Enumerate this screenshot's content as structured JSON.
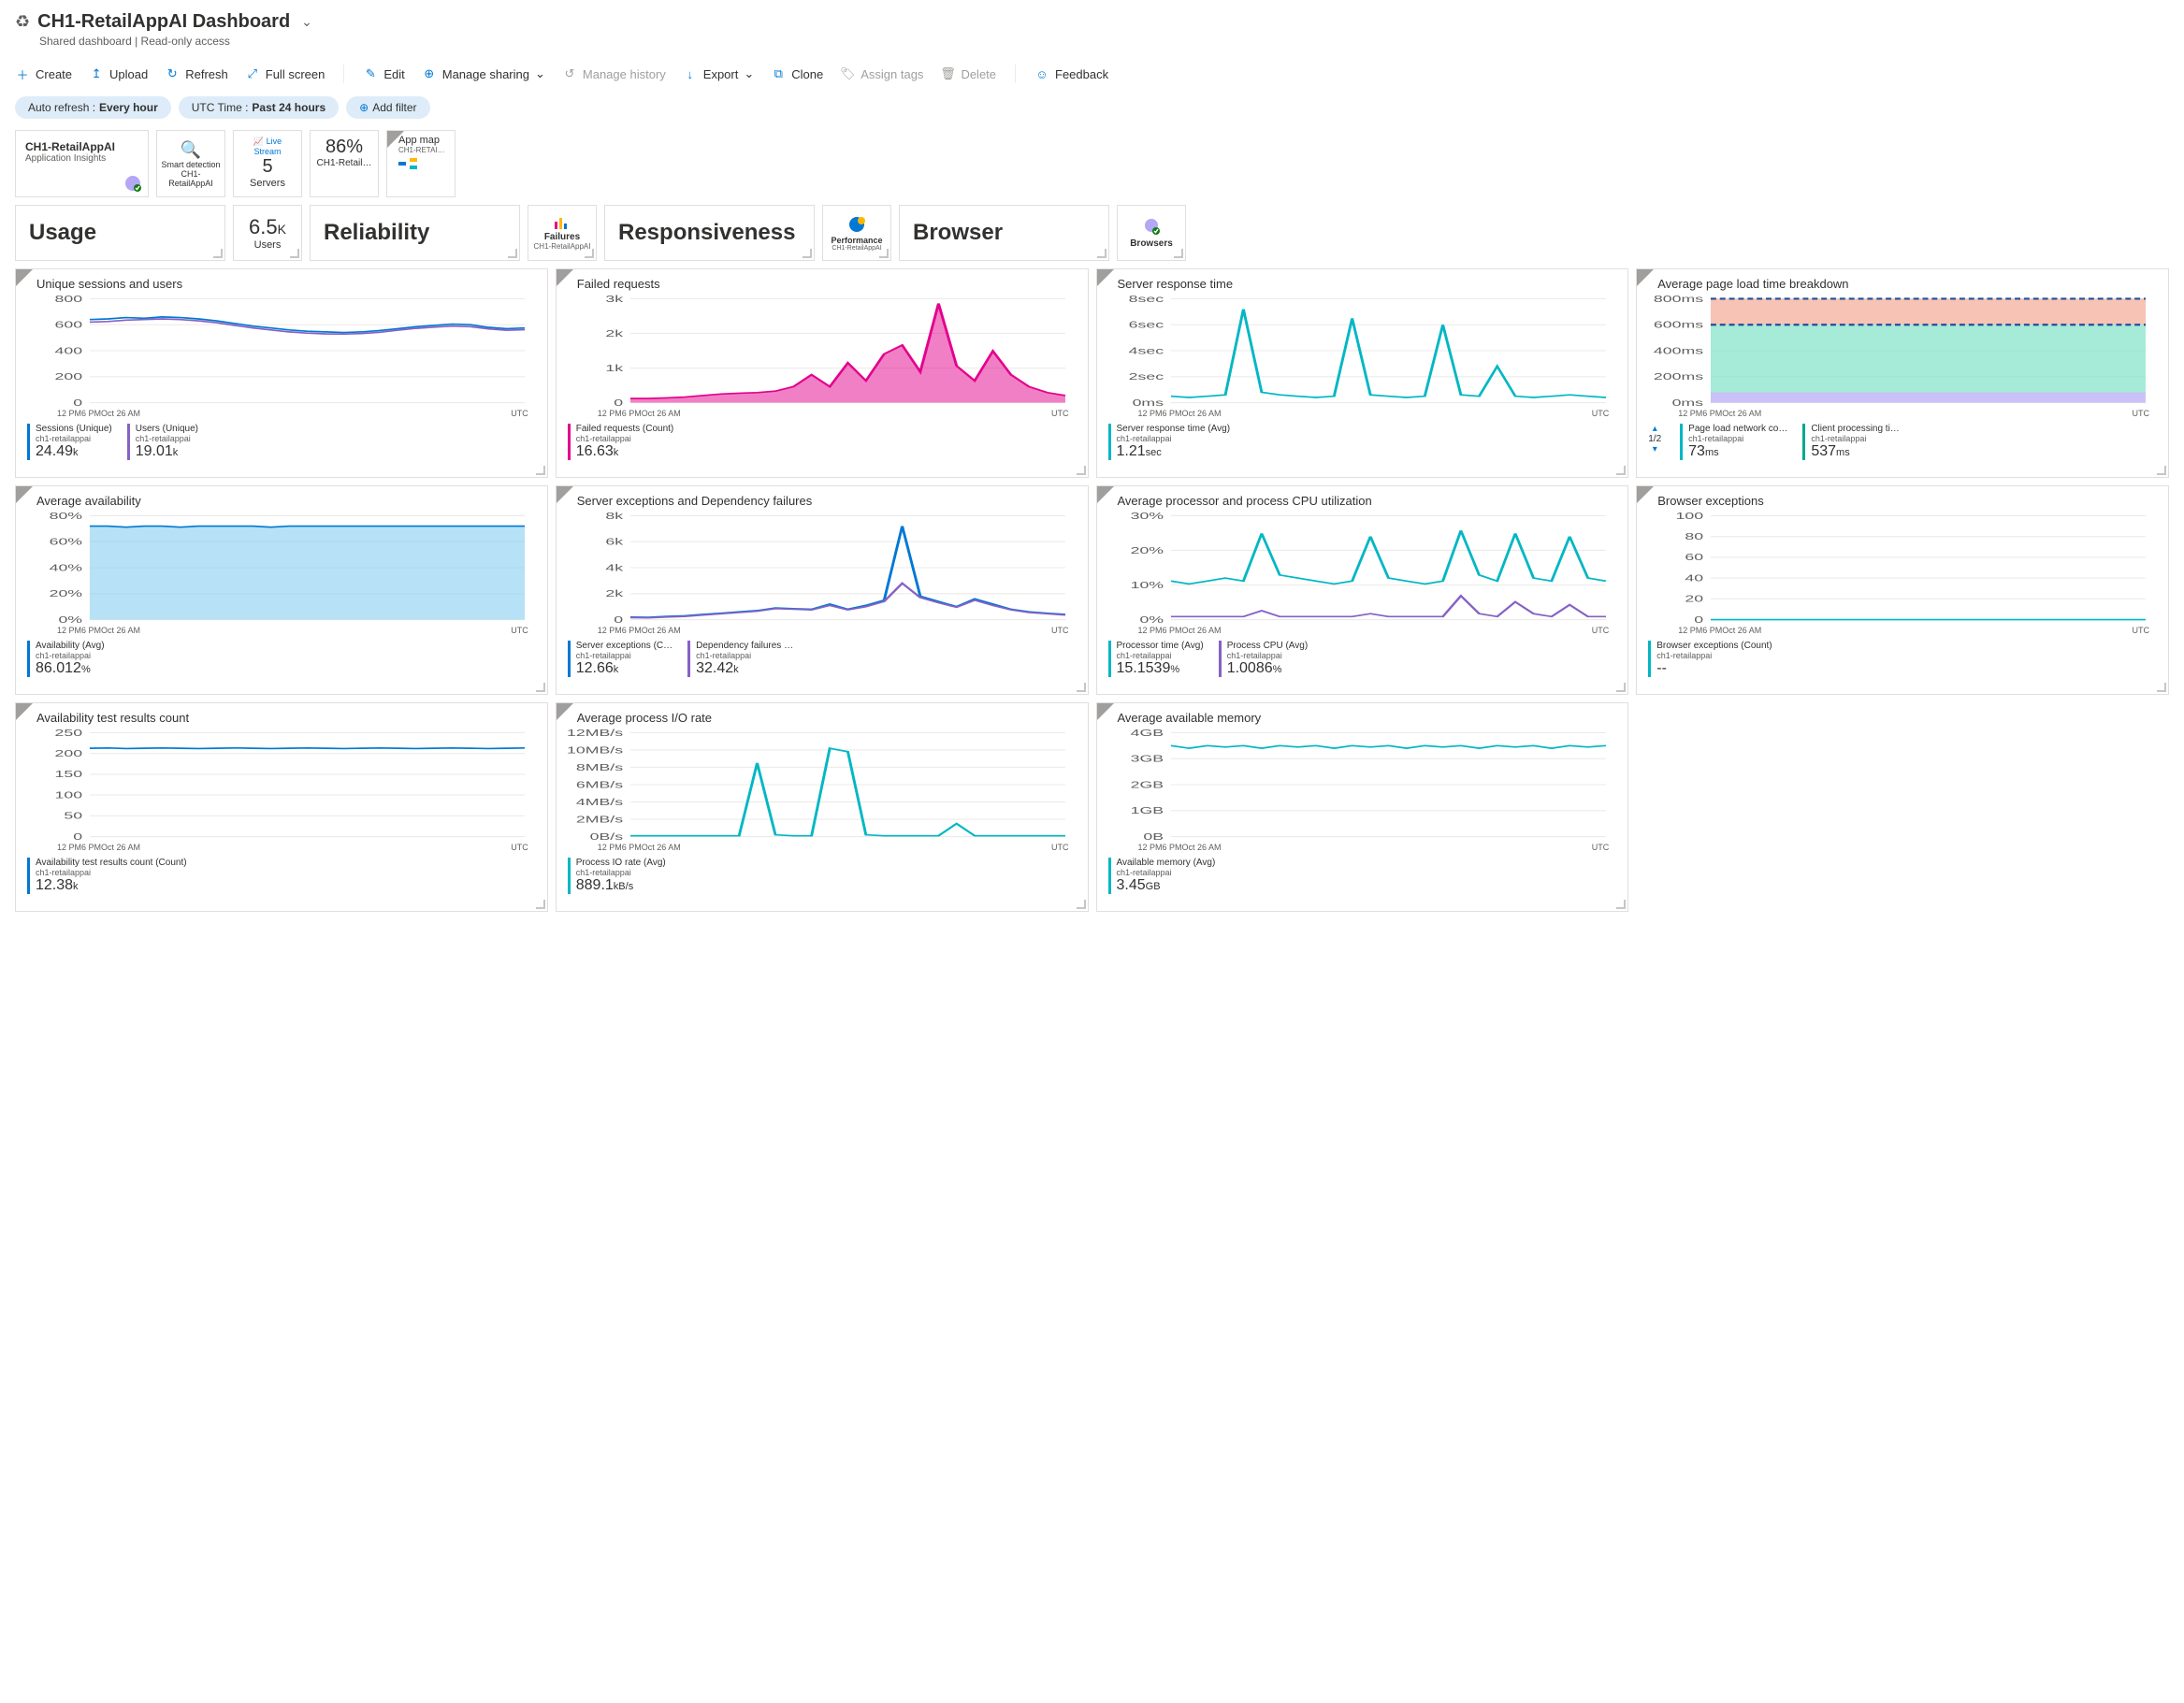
{
  "header": {
    "title": "CH1-RetailAppAI Dashboard",
    "subtitle": "Shared dashboard | Read-only access"
  },
  "toolbar": {
    "create": "Create",
    "upload": "Upload",
    "refresh": "Refresh",
    "fullscreen": "Full screen",
    "edit": "Edit",
    "manage_sharing": "Manage sharing",
    "manage_history": "Manage history",
    "export": "Export",
    "clone": "Clone",
    "assign_tags": "Assign tags",
    "delete": "Delete",
    "feedback": "Feedback"
  },
  "filters": {
    "auto_refresh_label": "Auto refresh :",
    "auto_refresh_value": "Every hour",
    "utc_label": "UTC Time :",
    "utc_value": "Past 24 hours",
    "add_filter": "Add filter"
  },
  "toptiles": {
    "app": {
      "title": "CH1-RetailAppAI",
      "sub": "Application Insights"
    },
    "smart": {
      "label": "Smart detection",
      "sub": "CH1-RetailAppAI"
    },
    "live": {
      "label": "Live Stream",
      "value": "5",
      "sub": "Servers"
    },
    "pct": {
      "value": "86%",
      "sub": "CH1-Retail…"
    },
    "appmap": {
      "label": "App map",
      "sub": "CH1-RETAI…"
    }
  },
  "sections": {
    "usage": "Usage",
    "users_val": "6.5",
    "users_unit": "K",
    "users_label": "Users",
    "reliability": "Reliability",
    "failures": "Failures",
    "failures_sub": "CH1-RetailAppAI",
    "responsiveness": "Responsiveness",
    "performance": "Performance",
    "performance_sub": "CH1-RetailAppAI",
    "browser": "Browser",
    "browsers": "Browsers"
  },
  "xaxis": [
    "12 PM",
    "6 PM",
    "Oct 2",
    "6 AM"
  ],
  "utc_label": "UTC",
  "charts": {
    "sessions": {
      "title": "Unique sessions and users",
      "yticks": [
        "800",
        "600",
        "400",
        "200",
        "0"
      ],
      "ylim": [
        0,
        800
      ],
      "color1": "#0078d4",
      "color2": "#8661c5",
      "series1": [
        640,
        645,
        655,
        650,
        660,
        655,
        645,
        630,
        610,
        590,
        575,
        560,
        550,
        545,
        540,
        545,
        555,
        570,
        585,
        595,
        605,
        600,
        580,
        570,
        575
      ],
      "series2": [
        620,
        625,
        635,
        640,
        645,
        640,
        630,
        615,
        595,
        575,
        560,
        545,
        535,
        530,
        528,
        532,
        542,
        558,
        572,
        582,
        590,
        585,
        568,
        558,
        562
      ],
      "metrics": [
        {
          "label": "Sessions (Unique)",
          "sub": "ch1-retailappai",
          "val": "24.49",
          "unit": "k",
          "color": "#0078d4"
        },
        {
          "label": "Users (Unique)",
          "sub": "ch1-retailappai",
          "val": "19.01",
          "unit": "k",
          "color": "#8661c5"
        }
      ]
    },
    "failed": {
      "title": "Failed requests",
      "yticks": [
        "3k",
        "2k",
        "1k",
        "0"
      ],
      "ylim": [
        0,
        3500
      ],
      "color": "#e3008c",
      "series": [
        0,
        0,
        20,
        50,
        100,
        150,
        180,
        200,
        250,
        400,
        800,
        400,
        1200,
        600,
        1500,
        1800,
        900,
        3200,
        1100,
        600,
        1600,
        800,
        400,
        200,
        100
      ],
      "metrics": [
        {
          "label": "Failed requests (Count)",
          "sub": "ch1-retailappai",
          "val": "16.63",
          "unit": "k",
          "color": "#e3008c"
        }
      ]
    },
    "response": {
      "title": "Server response time",
      "yticks": [
        "8sec",
        "6sec",
        "4sec",
        "2sec",
        "0ms"
      ],
      "ylim": [
        0,
        8
      ],
      "color": "#00b7c3",
      "series": [
        0.5,
        0.4,
        0.5,
        0.6,
        7.2,
        0.8,
        0.6,
        0.5,
        0.4,
        0.5,
        6.5,
        0.6,
        0.5,
        0.4,
        0.5,
        6.0,
        0.6,
        0.5,
        2.8,
        0.5,
        0.4,
        0.5,
        0.6,
        0.5,
        0.4
      ],
      "metrics": [
        {
          "label": "Server response time (Avg)",
          "sub": "ch1-retailappai",
          "val": "1.21",
          "unit": "sec",
          "color": "#00b7c3"
        }
      ]
    },
    "pageload": {
      "title": "Average page load time breakdown",
      "yticks": [
        "800ms",
        "600ms",
        "400ms",
        "200ms",
        "0ms"
      ],
      "ylim": [
        0,
        800
      ],
      "bands": [
        {
          "from": 0,
          "to": 80,
          "color": "#b4a7f5"
        },
        {
          "from": 80,
          "to": 600,
          "color": "#7fe3c8"
        },
        {
          "from": 600,
          "to": 800,
          "color": "#f4a996"
        }
      ],
      "pager": "1/2",
      "metrics": [
        {
          "label": "Page load network co…",
          "sub": "ch1-retailappai",
          "val": "73",
          "unit": "ms",
          "color": "#00b7c3"
        },
        {
          "label": "Client processing ti…",
          "sub": "ch1-retailappai",
          "val": "537",
          "unit": "ms",
          "color": "#00a88f"
        }
      ]
    },
    "availability": {
      "title": "Average availability",
      "yticks": [
        "80%",
        "60%",
        "40%",
        "20%",
        "0%"
      ],
      "ylim": [
        0,
        100
      ],
      "color": "#85cdf0",
      "series": [
        86,
        86,
        85,
        86,
        86,
        85,
        86,
        86,
        86,
        86,
        85,
        86,
        86,
        86,
        86,
        86,
        86,
        86,
        86,
        86,
        86,
        86,
        86,
        86,
        86
      ],
      "metrics": [
        {
          "label": "Availability (Avg)",
          "sub": "ch1-retailappai",
          "val": "86.012",
          "unit": "%",
          "color": "#0078d4"
        }
      ]
    },
    "exceptions": {
      "title": "Server exceptions and Dependency failures",
      "yticks": [
        "8k",
        "6k",
        "4k",
        "2k",
        "0"
      ],
      "ylim": [
        0,
        8000
      ],
      "color1": "#0078d4",
      "color2": "#8661c5",
      "series1": [
        200,
        180,
        250,
        300,
        400,
        500,
        600,
        700,
        900,
        850,
        800,
        1200,
        800,
        1100,
        1500,
        7200,
        1800,
        1400,
        1000,
        1600,
        1200,
        800,
        600,
        500,
        400
      ],
      "series2": [
        150,
        140,
        200,
        250,
        350,
        450,
        550,
        650,
        850,
        800,
        750,
        1100,
        750,
        1000,
        1400,
        2800,
        1700,
        1300,
        950,
        1500,
        1100,
        750,
        550,
        450,
        350
      ],
      "metrics": [
        {
          "label": "Server exceptions (C…",
          "sub": "ch1-retailappai",
          "val": "12.66",
          "unit": "k",
          "color": "#0078d4"
        },
        {
          "label": "Dependency failures …",
          "sub": "ch1-retailappai",
          "val": "32.42",
          "unit": "k",
          "color": "#8661c5"
        }
      ]
    },
    "cpu": {
      "title": "Average processor and process CPU utilization",
      "yticks": [
        "30%",
        "20%",
        "10%",
        "0%"
      ],
      "ylim": [
        0,
        35
      ],
      "color1": "#00b7c3",
      "color2": "#8661c5",
      "series1": [
        13,
        12,
        13,
        14,
        13,
        29,
        15,
        14,
        13,
        12,
        13,
        28,
        14,
        13,
        12,
        13,
        30,
        15,
        13,
        29,
        14,
        13,
        28,
        14,
        13
      ],
      "series2": [
        1,
        1,
        1,
        1,
        1,
        3,
        1,
        1,
        1,
        1,
        1,
        2,
        1,
        1,
        1,
        1,
        8,
        2,
        1,
        6,
        2,
        1,
        5,
        1,
        1
      ],
      "metrics": [
        {
          "label": "Processor time (Avg)",
          "sub": "ch1-retailappai",
          "val": "15.1539",
          "unit": "%",
          "color": "#00b7c3"
        },
        {
          "label": "Process CPU (Avg)",
          "sub": "ch1-retailappai",
          "val": "1.0086",
          "unit": "%",
          "color": "#8661c5"
        }
      ]
    },
    "browserex": {
      "title": "Browser exceptions",
      "yticks": [
        "100",
        "80",
        "60",
        "40",
        "20",
        "0"
      ],
      "ylim": [
        0,
        100
      ],
      "color": "#00b7c3",
      "series": [
        0,
        0,
        0,
        0,
        0,
        0,
        0,
        0,
        0,
        0,
        0,
        0,
        0,
        0,
        0,
        0,
        0,
        0,
        0,
        0,
        0,
        0,
        0,
        0,
        0
      ],
      "metrics": [
        {
          "label": "Browser exceptions (Count)",
          "sub": "ch1-retailappai",
          "val": "--",
          "unit": "",
          "color": "#00b7c3"
        }
      ]
    },
    "availtests": {
      "title": "Availability test results count",
      "yticks": [
        "250",
        "200",
        "150",
        "100",
        "50",
        "0"
      ],
      "ylim": [
        0,
        300
      ],
      "color": "#0078d4",
      "series": [
        255,
        256,
        254,
        255,
        256,
        255,
        254,
        255,
        256,
        255,
        254,
        255,
        256,
        255,
        254,
        255,
        256,
        255,
        254,
        255,
        256,
        255,
        254,
        255,
        256
      ],
      "metrics": [
        {
          "label": "Availability test results count (Count)",
          "sub": "ch1-retailappai",
          "val": "12.38",
          "unit": "k",
          "color": "#0078d4"
        }
      ]
    },
    "iorate": {
      "title": "Average process I/O rate",
      "yticks": [
        "12MB/s",
        "10MB/s",
        "8MB/s",
        "6MB/s",
        "4MB/s",
        "2MB/s",
        "0B/s"
      ],
      "ylim": [
        0,
        12
      ],
      "color": "#00b7c3",
      "series": [
        0.1,
        0.1,
        0.1,
        0.1,
        0.1,
        0.1,
        0.1,
        8.5,
        0.2,
        0.1,
        0.1,
        10.2,
        9.8,
        0.2,
        0.1,
        0.1,
        0.1,
        0.1,
        1.5,
        0.1,
        0.1,
        0.1,
        0.1,
        0.1,
        0.1
      ],
      "metrics": [
        {
          "label": "Process IO rate (Avg)",
          "sub": "ch1-retailappai",
          "val": "889.1",
          "unit": "kB/s",
          "color": "#00b7c3"
        }
      ]
    },
    "memory": {
      "title": "Average available memory",
      "yticks": [
        "4GB",
        "3GB",
        "2GB",
        "1GB",
        "0B"
      ],
      "ylim": [
        0,
        4
      ],
      "color": "#00b7c3",
      "series": [
        3.5,
        3.4,
        3.5,
        3.45,
        3.5,
        3.4,
        3.5,
        3.45,
        3.5,
        3.4,
        3.5,
        3.45,
        3.5,
        3.4,
        3.5,
        3.45,
        3.5,
        3.4,
        3.5,
        3.45,
        3.5,
        3.4,
        3.5,
        3.45,
        3.5
      ],
      "metrics": [
        {
          "label": "Available memory (Avg)",
          "sub": "ch1-retailappai",
          "val": "3.45",
          "unit": "GB",
          "color": "#00b7c3"
        }
      ]
    }
  },
  "colors": {
    "blue": "#0078d4",
    "purple": "#8661c5",
    "pink": "#e3008c",
    "teal": "#00b7c3"
  }
}
